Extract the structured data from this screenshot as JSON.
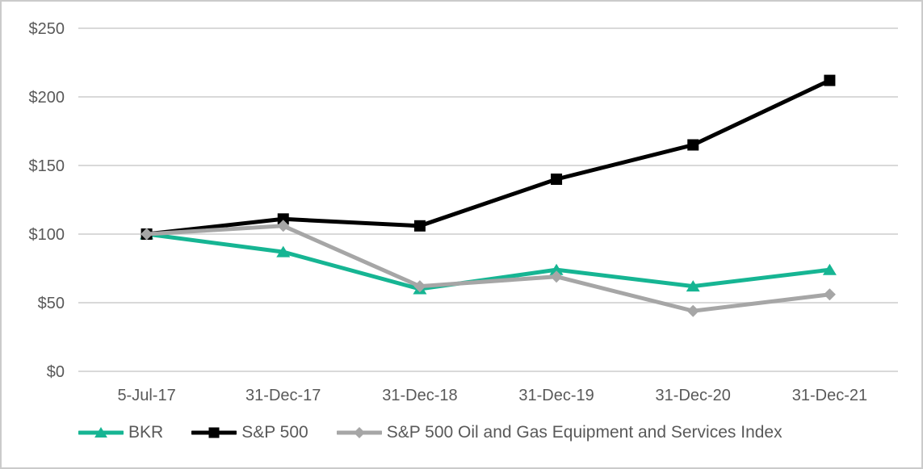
{
  "chart_data": {
    "type": "line",
    "title": "",
    "xlabel": "",
    "ylabel": "",
    "categories": [
      "5-Jul-17",
      "31-Dec-17",
      "31-Dec-18",
      "31-Dec-19",
      "31-Dec-20",
      "31-Dec-21"
    ],
    "series": [
      {
        "name": "BKR",
        "marker": "triangle",
        "color": "#16B593",
        "values": [
          100,
          87,
          60,
          74,
          62,
          74
        ]
      },
      {
        "name": "S&P 500",
        "marker": "square",
        "color": "#000000",
        "values": [
          100,
          111,
          106,
          140,
          165,
          212
        ]
      },
      {
        "name": "S&P 500 Oil and Gas Equipment and Services Index",
        "marker": "diamond",
        "color": "#A6A6A6",
        "values": [
          100,
          106,
          62,
          69,
          44,
          56
        ]
      }
    ],
    "ylim": [
      0,
      250
    ],
    "ytick_step": 50,
    "ytick_labels": [
      "$0",
      "$50",
      "$100",
      "$150",
      "$200",
      "$250"
    ],
    "grid": true,
    "legend_position": "bottom"
  },
  "styles": {
    "gridline_color": "#D9D9D9",
    "label_color": "#595959",
    "frame_border_color": "#CBCBCB",
    "background_color": "#FFFFFF"
  }
}
